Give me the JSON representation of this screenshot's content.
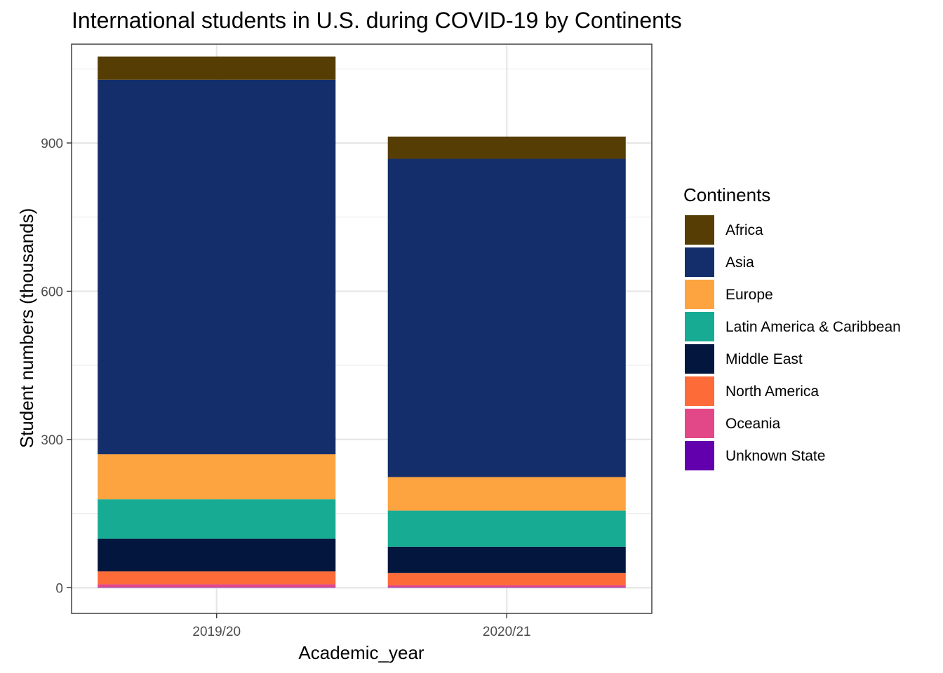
{
  "chart_data": {
    "type": "bar",
    "stacked": true,
    "title": "International students in U.S. during COVID-19 by Continents",
    "xlabel": "Academic_year",
    "ylabel": "Student numbers (thousands)",
    "categories": [
      "2019/20",
      "2020/21"
    ],
    "ylim": [
      -52,
      1100
    ],
    "yticks": [
      0,
      300,
      600,
      900
    ],
    "grid": true,
    "legend": {
      "title": "Continents",
      "position": "right"
    },
    "series": [
      {
        "name": "Africa",
        "color": "#553d04",
        "values": [
          47,
          45
        ]
      },
      {
        "name": "Asia",
        "color": "#132e6b",
        "values": [
          758,
          644
        ]
      },
      {
        "name": "Europe",
        "color": "#fda340",
        "values": [
          91,
          68
        ]
      },
      {
        "name": "Latin America & Caribbean",
        "color": "#17ab94",
        "values": [
          80,
          73
        ]
      },
      {
        "name": "Middle East",
        "color": "#03173e",
        "values": [
          66,
          53
        ]
      },
      {
        "name": "North America",
        "color": "#fc6b38",
        "values": [
          26,
          25
        ]
      },
      {
        "name": "Oceania",
        "color": "#e24787",
        "values": [
          6,
          4
        ]
      },
      {
        "name": "Unknown State",
        "color": "#6200ad",
        "values": [
          1,
          1
        ]
      }
    ]
  }
}
